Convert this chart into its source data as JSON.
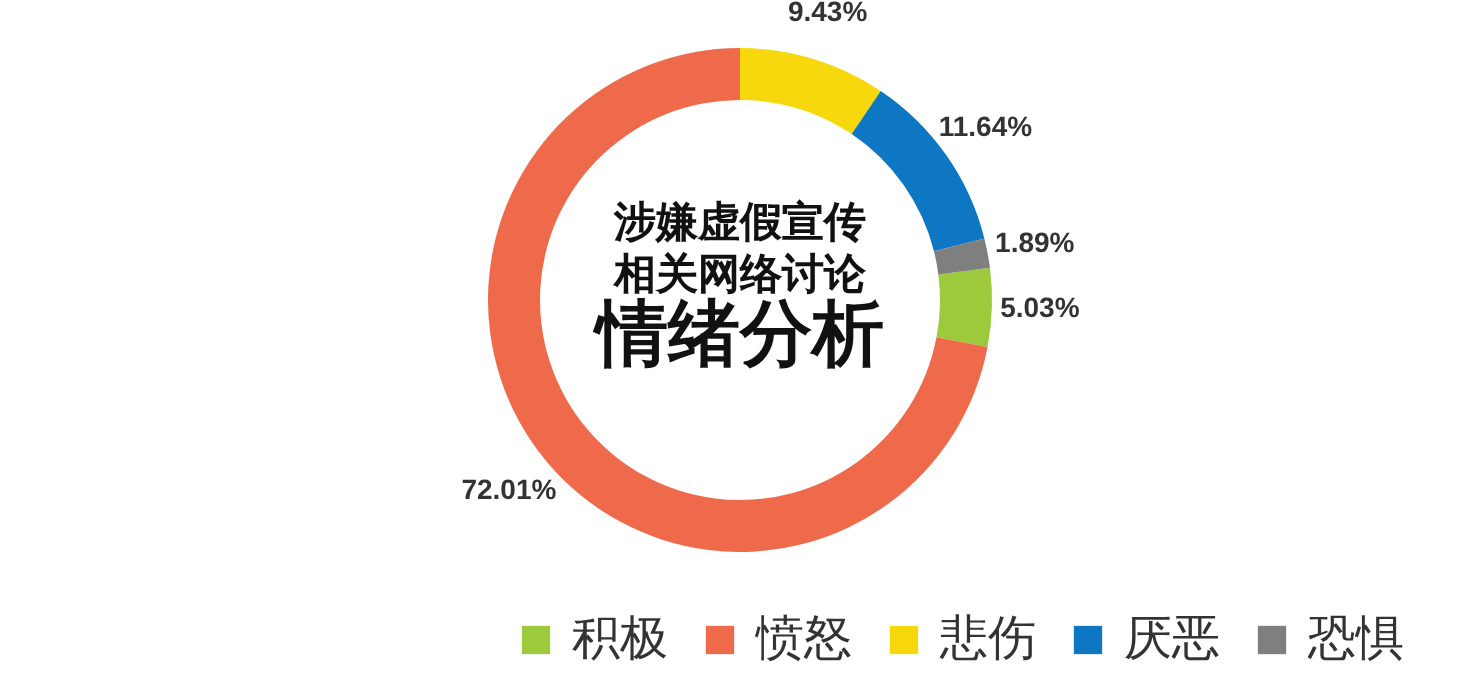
{
  "chart_data": {
    "type": "donut",
    "title": "涉嫌虚假宣传相关网络讨论",
    "subtitle": "情绪分析",
    "categories": [
      "积极",
      "愤怒",
      "悲伤",
      "厌恶",
      "恐惧"
    ],
    "values": [
      5.03,
      72.01,
      9.43,
      11.64,
      1.89
    ],
    "colors": [
      "#9dc93c",
      "#ef6a4a",
      "#f7d80c",
      "#0e77c3",
      "#7f7f7f"
    ],
    "value_labels": [
      "5.03%",
      "72.01%",
      "9.43%",
      "11.64%",
      "1.89%"
    ],
    "legend": "bottom"
  }
}
